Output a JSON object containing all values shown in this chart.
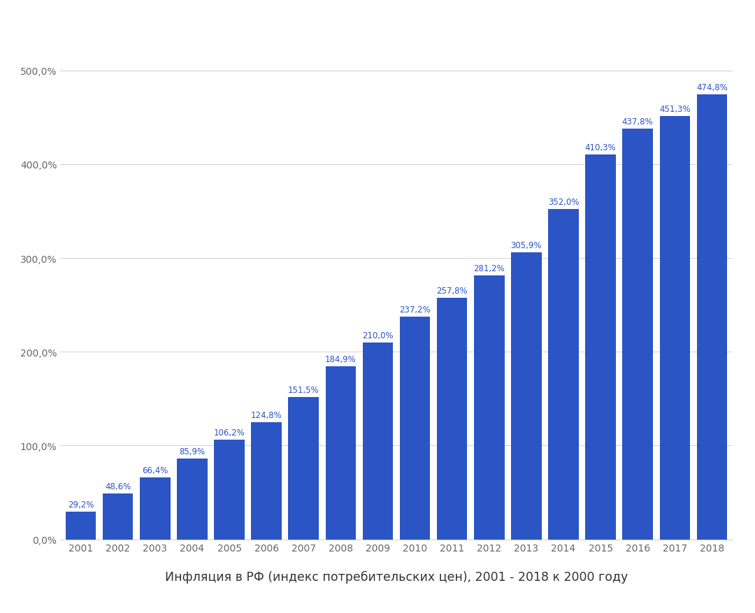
{
  "years": [
    "2001",
    "2002",
    "2003",
    "2004",
    "2005",
    "2006",
    "2007",
    "2008",
    "2009",
    "2010",
    "2011",
    "2012",
    "2013",
    "2014",
    "2015",
    "2016",
    "2017",
    "2018"
  ],
  "values": [
    29.2,
    48.6,
    66.4,
    85.9,
    106.2,
    124.8,
    151.5,
    184.9,
    210.0,
    237.2,
    257.8,
    281.2,
    305.9,
    352.0,
    410.3,
    437.8,
    451.3,
    474.8
  ],
  "bar_color": "#2b55c5",
  "background_color": "#ffffff",
  "title": "Инфляция в РФ (индекс потребительских цен), 2001 - 2018 к 2000 году",
  "ylim": [
    0,
    530
  ],
  "yticks": [
    0,
    100,
    200,
    300,
    400,
    500
  ],
  "ytick_labels": [
    "0,0%",
    "100,0%",
    "200,0%",
    "300,0%",
    "400,0%",
    "500,0%"
  ],
  "grid_color": "#d0d0d0",
  "label_color": "#2b55c5",
  "axis_label_color": "#666666",
  "title_fontsize": 12.5,
  "bar_label_fontsize": 8.5,
  "bar_width": 0.82
}
